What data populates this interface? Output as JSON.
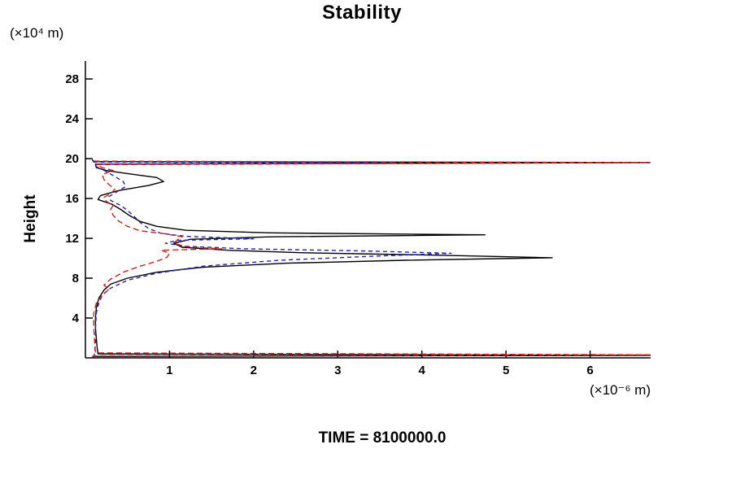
{
  "chart_data": {
    "type": "line",
    "title": "Stability",
    "ylabel": "Height",
    "y_unit": "(×10⁴ m)",
    "x_unit": "(×10⁻⁶ m)",
    "time_label": "TIME = 8100000.0",
    "xlim": [
      0,
      6.72
    ],
    "ylim": [
      0,
      29.8
    ],
    "xticks": [
      1,
      2,
      3,
      4,
      5,
      6
    ],
    "yticks": [
      4,
      8,
      12,
      16,
      20,
      24,
      28
    ],
    "grid": false,
    "legend": "none",
    "axis_color": "#000000",
    "series": [
      {
        "name": "solid-black",
        "color": "#000000",
        "dash": "",
        "points": [
          [
            0.1,
            0.02
          ],
          [
            0.1,
            0.15
          ],
          [
            6.9,
            0.25
          ],
          [
            0.15,
            0.4
          ],
          [
            0.14,
            1.0
          ],
          [
            0.13,
            2.0
          ],
          [
            0.12,
            3.0
          ],
          [
            0.12,
            4.0
          ],
          [
            0.13,
            5.0
          ],
          [
            0.16,
            6.0
          ],
          [
            0.22,
            6.8
          ],
          [
            0.3,
            7.4
          ],
          [
            0.5,
            8.0
          ],
          [
            0.85,
            8.6
          ],
          [
            1.4,
            9.1
          ],
          [
            2.4,
            9.5
          ],
          [
            3.8,
            9.8
          ],
          [
            5.55,
            10.05
          ],
          [
            4.2,
            10.3
          ],
          [
            2.6,
            10.55
          ],
          [
            1.7,
            10.8
          ],
          [
            1.15,
            11.1
          ],
          [
            1.05,
            11.5
          ],
          [
            1.25,
            11.9
          ],
          [
            2.2,
            12.15
          ],
          [
            4.75,
            12.35
          ],
          [
            2.2,
            12.55
          ],
          [
            1.2,
            12.8
          ],
          [
            0.85,
            13.2
          ],
          [
            0.65,
            13.7
          ],
          [
            0.52,
            14.3
          ],
          [
            0.42,
            14.9
          ],
          [
            0.32,
            15.4
          ],
          [
            0.15,
            15.9
          ],
          [
            0.18,
            16.3
          ],
          [
            0.4,
            16.8
          ],
          [
            0.75,
            17.3
          ],
          [
            0.93,
            17.7
          ],
          [
            0.85,
            18.1
          ],
          [
            0.5,
            18.5
          ],
          [
            0.25,
            18.8
          ],
          [
            0.13,
            19.1
          ],
          [
            0.12,
            19.45
          ],
          [
            6.9,
            19.6
          ],
          [
            0.1,
            19.7
          ],
          [
            0.08,
            19.9
          ]
        ]
      },
      {
        "name": "dashed-blue",
        "color": "#2323bb",
        "dash": "5,4",
        "points": [
          [
            0.1,
            0.02
          ],
          [
            0.11,
            0.5
          ],
          [
            0.12,
            1.5
          ],
          [
            0.12,
            3.0
          ],
          [
            0.13,
            4.5
          ],
          [
            0.16,
            5.5
          ],
          [
            0.2,
            6.3
          ],
          [
            0.3,
            7.0
          ],
          [
            0.5,
            7.8
          ],
          [
            0.85,
            8.5
          ],
          [
            1.4,
            9.2
          ],
          [
            2.3,
            9.8
          ],
          [
            3.4,
            10.2
          ],
          [
            4.35,
            10.5
          ],
          [
            3.2,
            10.75
          ],
          [
            1.9,
            10.95
          ],
          [
            1.2,
            11.2
          ],
          [
            0.95,
            11.5
          ],
          [
            1.1,
            11.8
          ],
          [
            2.0,
            11.95
          ],
          [
            1.2,
            12.2
          ],
          [
            0.9,
            12.5
          ],
          [
            0.75,
            13.0
          ],
          [
            0.65,
            13.6
          ],
          [
            0.58,
            14.2
          ],
          [
            0.5,
            14.8
          ],
          [
            0.42,
            15.3
          ],
          [
            0.3,
            15.8
          ],
          [
            0.28,
            16.2
          ],
          [
            0.38,
            16.7
          ],
          [
            0.48,
            17.2
          ],
          [
            0.45,
            17.7
          ],
          [
            0.35,
            18.2
          ],
          [
            0.25,
            18.7
          ],
          [
            0.15,
            19.1
          ],
          [
            0.12,
            19.45
          ],
          [
            3.7,
            19.55
          ],
          [
            0.1,
            19.65
          ],
          [
            0.08,
            19.9
          ]
        ]
      },
      {
        "name": "dashed-red",
        "color": "#cc2222",
        "dash": "7,4",
        "points": [
          [
            0.08,
            0.05
          ],
          [
            0.09,
            0.2
          ],
          [
            6.9,
            0.3
          ],
          [
            0.12,
            0.5
          ],
          [
            0.11,
            1.5
          ],
          [
            0.1,
            3.0
          ],
          [
            0.1,
            4.5
          ],
          [
            0.13,
            5.5
          ],
          [
            0.2,
            6.3
          ],
          [
            0.28,
            6.9
          ],
          [
            0.22,
            7.3
          ],
          [
            0.3,
            7.9
          ],
          [
            0.45,
            8.6
          ],
          [
            0.65,
            9.2
          ],
          [
            0.85,
            9.7
          ],
          [
            0.97,
            10.1
          ],
          [
            1.0,
            10.5
          ],
          [
            0.9,
            10.8
          ],
          [
            1.62,
            10.95
          ],
          [
            1.2,
            11.15
          ],
          [
            1.05,
            11.5
          ],
          [
            1.1,
            11.9
          ],
          [
            1.15,
            12.15
          ],
          [
            0.95,
            12.45
          ],
          [
            0.65,
            12.75
          ],
          [
            0.5,
            13.2
          ],
          [
            0.4,
            13.7
          ],
          [
            0.33,
            14.3
          ],
          [
            0.3,
            14.9
          ],
          [
            0.33,
            15.3
          ],
          [
            0.25,
            15.7
          ],
          [
            0.22,
            16.1
          ],
          [
            0.3,
            16.5
          ],
          [
            0.35,
            16.9
          ],
          [
            0.28,
            17.4
          ],
          [
            0.22,
            17.9
          ],
          [
            0.2,
            18.4
          ],
          [
            0.33,
            18.8
          ],
          [
            0.2,
            19.1
          ],
          [
            0.13,
            19.4
          ],
          [
            6.9,
            19.6
          ],
          [
            0.1,
            19.75
          ],
          [
            0.08,
            19.9
          ]
        ]
      }
    ]
  }
}
